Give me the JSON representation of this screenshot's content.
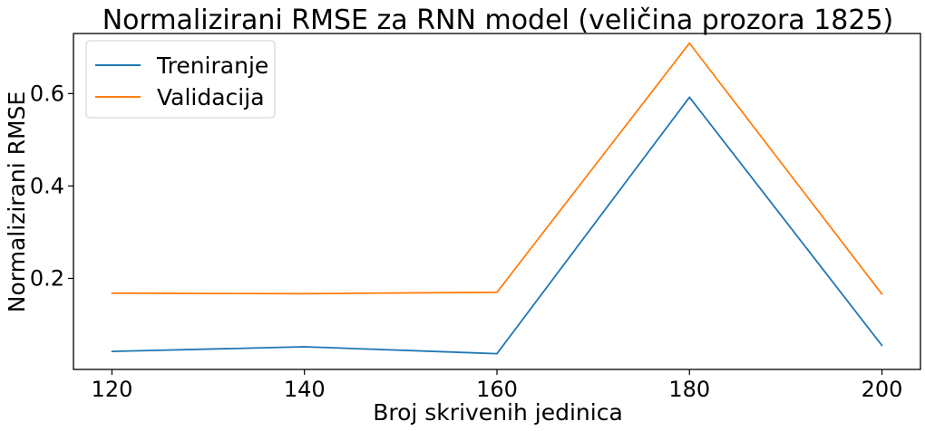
{
  "chart_data": {
    "type": "line",
    "title": "Normalizirani RMSE za RNN model (veličina prozora 1825)",
    "xlabel": "Broj skrivenih jedinica",
    "ylabel": "Normalizirani RMSE",
    "x": [
      120,
      140,
      160,
      180,
      200
    ],
    "xticks": [
      "120",
      "140",
      "160",
      "180",
      "200"
    ],
    "yticks": [
      "0.2",
      "0.4",
      "0.6"
    ],
    "xlim": [
      116,
      204
    ],
    "ylim": [
      0.003,
      0.73
    ],
    "legend_position": "upper-left",
    "grid": false,
    "series": [
      {
        "name": "Treniranje",
        "color": "#1f77b4",
        "values": [
          0.042,
          0.052,
          0.037,
          0.592,
          0.055
        ]
      },
      {
        "name": "Validacija",
        "color": "#ff7f0e",
        "values": [
          0.168,
          0.167,
          0.17,
          0.709,
          0.166
        ]
      }
    ]
  }
}
